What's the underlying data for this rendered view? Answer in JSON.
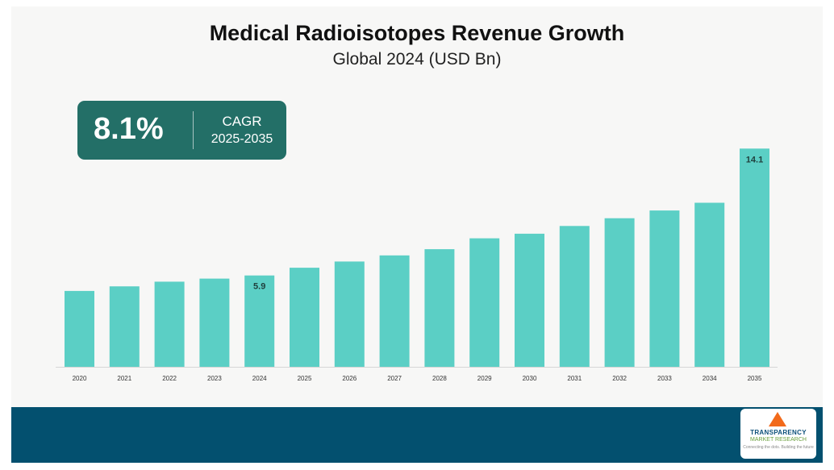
{
  "header": {
    "title": "Medical Radioisotopes Revenue Growth",
    "subtitle": "Global 2024 (USD Bn)"
  },
  "cagr": {
    "value": "8.1%",
    "label": "CAGR",
    "period": "2025-2035"
  },
  "logo": {
    "line1": "TRANSPARENCY",
    "line2": "MARKET RESEARCH",
    "line3": "Connecting the dots. Building the future"
  },
  "colors": {
    "bar": "#5bcfc5",
    "cagr_box": "#236f67",
    "footer": "#03506f",
    "background": "#f7f7f6",
    "logo_accent": "#f26a1b"
  },
  "chart_data": {
    "type": "bar",
    "title": "Medical Radioisotopes Revenue Growth",
    "subtitle": "Global 2024 (USD Bn)",
    "categories": [
      "2020",
      "2021",
      "2022",
      "2023",
      "2024",
      "2025",
      "2026",
      "2027",
      "2028",
      "2029",
      "2030",
      "2031",
      "2032",
      "2033",
      "2034",
      "2035"
    ],
    "values": [
      4.9,
      5.2,
      5.5,
      5.7,
      5.9,
      6.4,
      6.8,
      7.2,
      7.6,
      8.3,
      8.6,
      9.1,
      9.6,
      10.1,
      10.6,
      14.1
    ],
    "data_labels": [
      {
        "category": "2024",
        "text": "5.9"
      },
      {
        "category": "2035",
        "text": "14.1"
      }
    ],
    "xlabel": "",
    "ylabel": "",
    "grid": false,
    "legend": "none"
  }
}
